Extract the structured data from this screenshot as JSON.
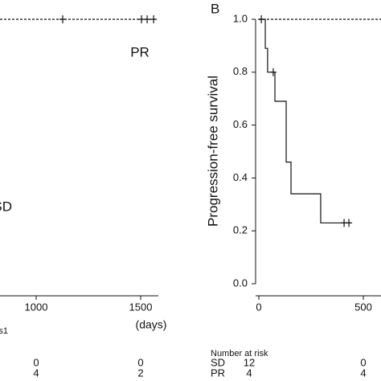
{
  "chart_data": [
    {
      "type": "step",
      "x_label": "(days)",
      "xlim": [
        0,
        1600
      ],
      "xticks": [
        1000,
        1500
      ],
      "ylim": [
        0,
        1
      ],
      "series": [
        {
          "name": "PR",
          "color": "#111111",
          "line_style": "dashed",
          "x": [
            0,
            1577
          ],
          "values": [
            1,
            1
          ],
          "censored_x": [
            1127,
            1504,
            1531,
            1562
          ],
          "censored_values": [
            1,
            1,
            1,
            1
          ]
        }
      ],
      "group_labels": [
        "PR",
        "SD"
      ],
      "risk_table": {
        "title": "s1",
        "rows": [
          {
            "values": [
              0,
              0
            ]
          },
          {
            "values": [
              4,
              2
            ]
          }
        ]
      }
    },
    {
      "type": "step",
      "panel_label": "B",
      "y_label": "Progression-free survival",
      "xlim": [
        0,
        600
      ],
      "xticks": [
        0,
        500
      ],
      "ylim": [
        0,
        1
      ],
      "yticks": [
        {
          "value": 0,
          "label": "0.0"
        },
        0.2,
        0.4,
        0.6,
        0.8,
        {
          "value": 1,
          "label": "1.0"
        }
      ],
      "series": [
        {
          "name": "PR",
          "color": "#111111",
          "line_style": "dashed",
          "x": [
            0,
            600
          ],
          "values": [
            1,
            1
          ],
          "censored_x": [
            12
          ],
          "censored_values": [
            1
          ]
        },
        {
          "name": "SD",
          "color": "#111111",
          "line_style": "solid",
          "x": [
            0,
            31,
            42,
            77,
            131,
            154,
            296,
            442
          ],
          "values": [
            1,
            0.89,
            0.8,
            0.69,
            0.46,
            0.34,
            0.23,
            0.23
          ],
          "censored_x": [
            69,
            408,
            431
          ],
          "censored_values": [
            0.8,
            0.23,
            0.23
          ]
        }
      ],
      "risk_table": {
        "title": "Number at risk",
        "rows": [
          {
            "name": "SD",
            "values": [
              12,
              0
            ]
          },
          {
            "name": "PR",
            "values": [
              4,
              4
            ]
          }
        ]
      }
    }
  ]
}
